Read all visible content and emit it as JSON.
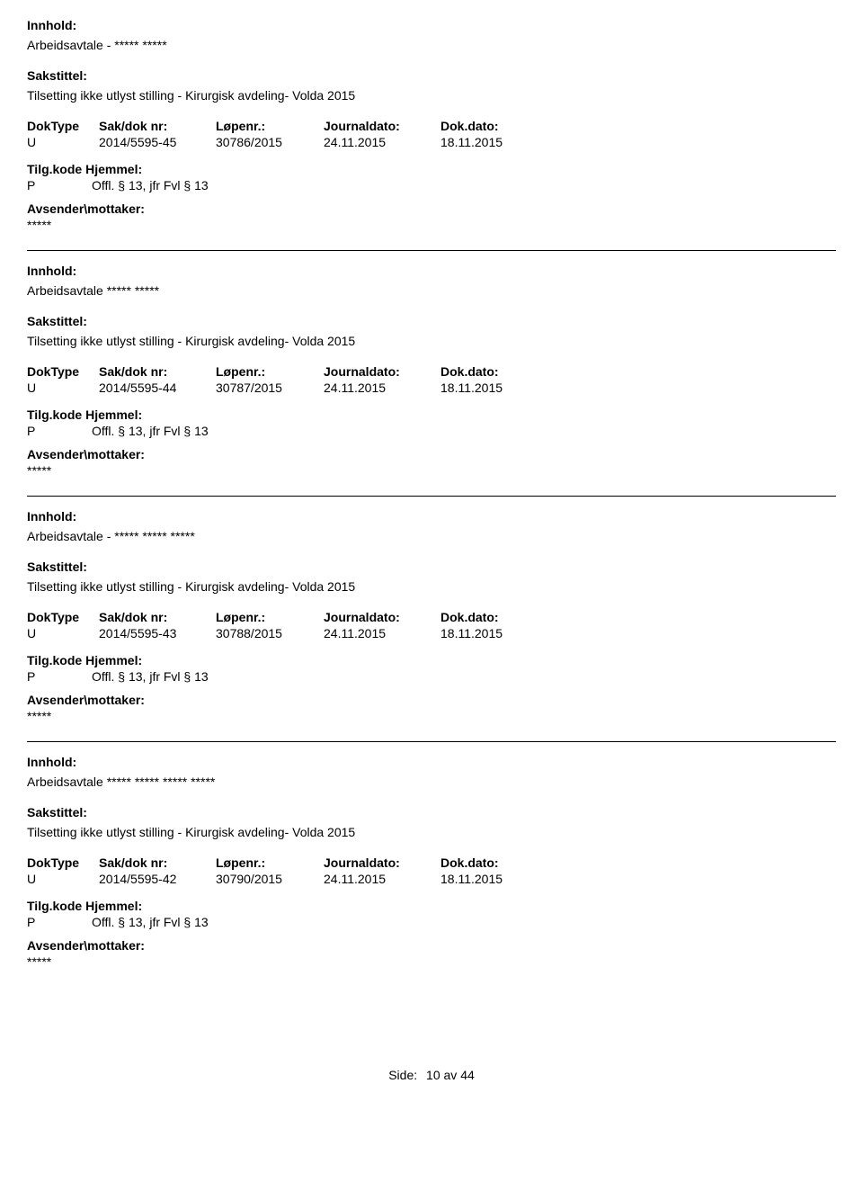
{
  "labels": {
    "innhold": "Innhold:",
    "sakstittel": "Sakstittel:",
    "doktype": "DokType",
    "sakdok": "Sak/dok nr:",
    "lopenr": "Løpenr.:",
    "journaldato": "Journaldato:",
    "dokdato": "Dok.dato:",
    "tilgkode": "Tilg.kode",
    "hjemmel": "Hjemmel:",
    "avsender": "Avsender\\mottaker:"
  },
  "entries": [
    {
      "innhold": "Arbeidsavtale - ***** *****",
      "sakstittel": "Tilsetting ikke utlyst stilling - Kirurgisk avdeling- Volda 2015",
      "doktype": "U",
      "sakdok": "2014/5595-45",
      "lopenr": "30786/2015",
      "journaldato": "24.11.2015",
      "dokdato": "18.11.2015",
      "tilgcode": "P",
      "hjemmel": "Offl. § 13, jfr Fvl § 13",
      "avsender": "*****"
    },
    {
      "innhold": "Arbeidsavtale ***** *****",
      "sakstittel": "Tilsetting ikke utlyst stilling - Kirurgisk avdeling- Volda 2015",
      "doktype": "U",
      "sakdok": "2014/5595-44",
      "lopenr": "30787/2015",
      "journaldato": "24.11.2015",
      "dokdato": "18.11.2015",
      "tilgcode": "P",
      "hjemmel": "Offl. § 13, jfr Fvl § 13",
      "avsender": "*****"
    },
    {
      "innhold": "Arbeidsavtale - ***** ***** *****",
      "sakstittel": "Tilsetting ikke utlyst stilling - Kirurgisk avdeling- Volda 2015",
      "doktype": "U",
      "sakdok": "2014/5595-43",
      "lopenr": "30788/2015",
      "journaldato": "24.11.2015",
      "dokdato": "18.11.2015",
      "tilgcode": "P",
      "hjemmel": "Offl. § 13, jfr Fvl § 13",
      "avsender": "*****"
    },
    {
      "innhold": "Arbeidsavtale ***** ***** ***** *****",
      "sakstittel": "Tilsetting ikke utlyst stilling - Kirurgisk avdeling- Volda 2015",
      "doktype": "U",
      "sakdok": "2014/5595-42",
      "lopenr": "30790/2015",
      "journaldato": "24.11.2015",
      "dokdato": "18.11.2015",
      "tilgcode": "P",
      "hjemmel": "Offl. § 13, jfr Fvl § 13",
      "avsender": "*****"
    }
  ],
  "footer": {
    "side_label": "Side:",
    "current": "10",
    "av": "av",
    "total": "44"
  }
}
